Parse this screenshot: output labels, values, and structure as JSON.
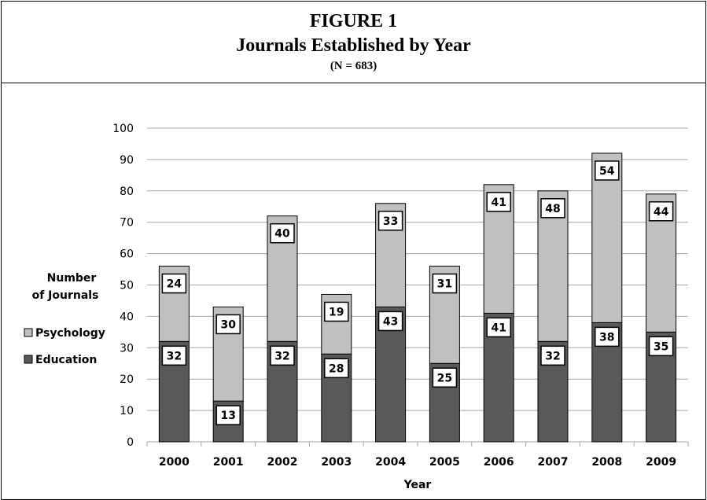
{
  "figure": {
    "label": "FIGURE 1",
    "title": "Journals Established by Year",
    "subtitle": "(N = 683)"
  },
  "colors": {
    "education": "#595959",
    "psychology": "#c0c0c0",
    "grid": "#a6a6a6"
  },
  "chart_data": {
    "type": "bar",
    "stacked": true,
    "categories": [
      "2000",
      "2001",
      "2002",
      "2003",
      "2004",
      "2005",
      "2006",
      "2007",
      "2008",
      "2009"
    ],
    "series": [
      {
        "name": "Education",
        "values": [
          32,
          13,
          32,
          28,
          43,
          25,
          41,
          32,
          38,
          35
        ]
      },
      {
        "name": "Psychology",
        "values": [
          24,
          30,
          40,
          19,
          33,
          31,
          41,
          48,
          54,
          44
        ]
      }
    ],
    "xlabel": "Year",
    "ylabel_lines": [
      "Number",
      "of Journals"
    ],
    "ylim": [
      0,
      100
    ],
    "yticks": [
      0,
      10,
      20,
      30,
      40,
      50,
      60,
      70,
      80,
      90,
      100
    ],
    "grid": true,
    "legend": {
      "placement": "left",
      "entries": [
        "Psychology",
        "Education"
      ]
    }
  }
}
